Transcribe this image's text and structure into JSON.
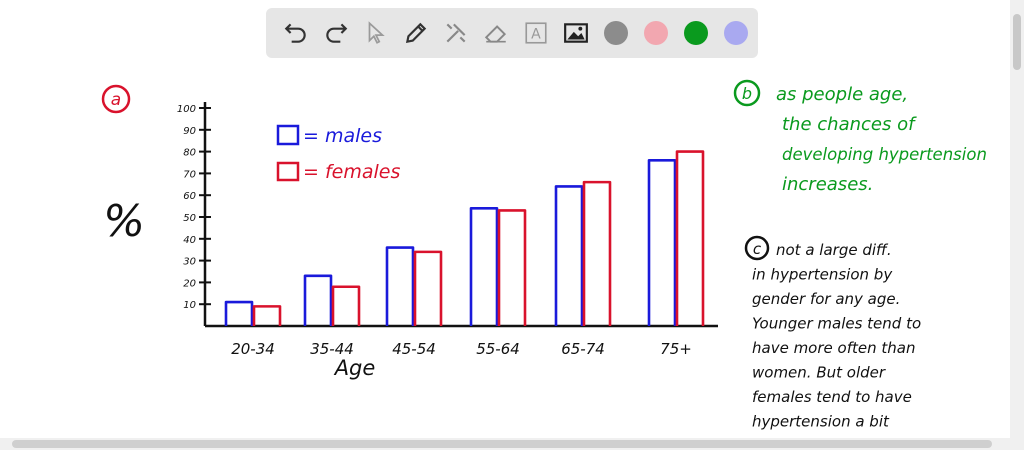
{
  "toolbar": {
    "tools": [
      "undo-icon",
      "redo-icon",
      "pointer-icon",
      "pen-icon",
      "tools-icon",
      "eraser-icon",
      "text-icon",
      "image-icon"
    ],
    "text_tool_label": "A",
    "swatches": [
      "#8c8c8c",
      "#f2a7b0",
      "#0a9a1e",
      "#a9a9f0"
    ]
  },
  "annotations": {
    "a_label": "a",
    "b_label": "b",
    "c_label": "c",
    "percent_symbol": "%",
    "legend_males": "= males",
    "legend_females": "= females",
    "b_lines": [
      "as people age,",
      "the chances of",
      "developing hypertension",
      "increases."
    ],
    "c_lines": [
      "not a large diff.",
      "in hypertension by",
      "gender for any age.",
      "Younger males tend to",
      "have more often than",
      "women. But older",
      "females tend to have",
      "hypertension a bit"
    ]
  },
  "chart_data": {
    "type": "bar",
    "categories": [
      "20-34",
      "35-44",
      "45-54",
      "55-64",
      "65-74",
      "75+"
    ],
    "series": [
      {
        "name": "males",
        "values": [
          11,
          23,
          36,
          54,
          64,
          76
        ],
        "color": "#1a1adb"
      },
      {
        "name": "females",
        "values": [
          9,
          18,
          34,
          53,
          66,
          80
        ],
        "color": "#d9122c"
      }
    ],
    "xlabel": "Age",
    "ylabel": "%",
    "yticks": [
      10,
      20,
      30,
      40,
      50,
      60,
      70,
      80,
      90,
      100
    ],
    "ylim": [
      0,
      100
    ],
    "legend_position": "top-left"
  }
}
